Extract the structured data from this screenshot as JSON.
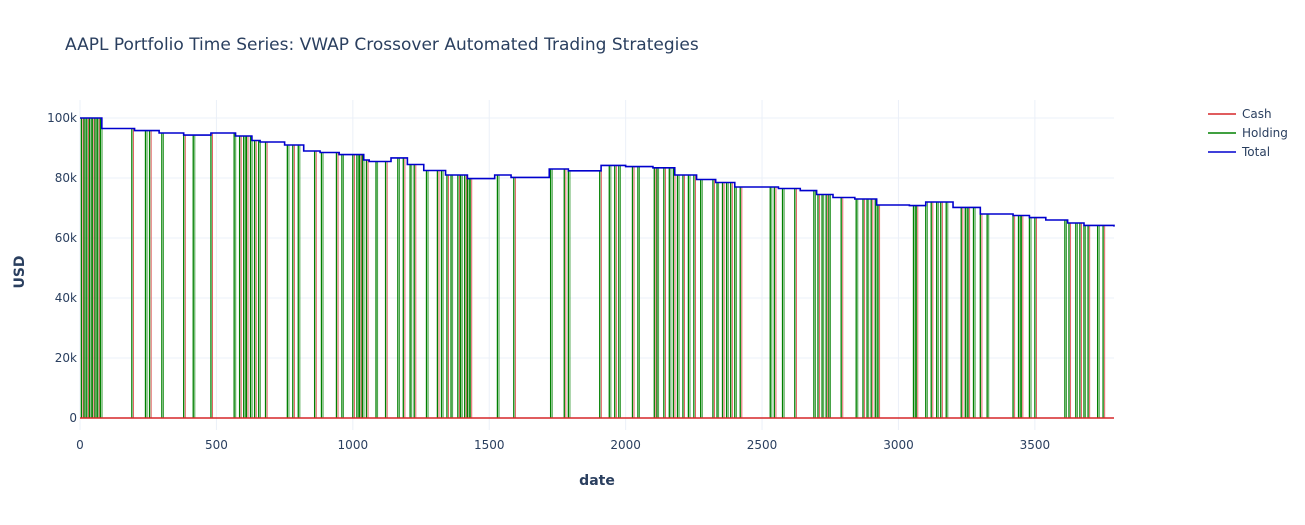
{
  "chart_data": {
    "type": "line",
    "title": "AAPL Portfolio Time Series: VWAP Crossover Automated Trading Strategies",
    "xlabel": "date",
    "ylabel": "USD",
    "xlim": [
      0,
      3790
    ],
    "ylim": [
      -4000,
      106000
    ],
    "x_ticks": [
      {
        "value": 0,
        "label": "0"
      },
      {
        "value": 500,
        "label": "500"
      },
      {
        "value": 1000,
        "label": "1000"
      },
      {
        "value": 1500,
        "label": "1500"
      },
      {
        "value": 2000,
        "label": "2000"
      },
      {
        "value": 2500,
        "label": "2500"
      },
      {
        "value": 3000,
        "label": "3000"
      },
      {
        "value": 3500,
        "label": "3500"
      }
    ],
    "y_ticks": [
      {
        "value": 0,
        "label": "0"
      },
      {
        "value": 20000,
        "label": "20k"
      },
      {
        "value": 40000,
        "label": "40k"
      },
      {
        "value": 60000,
        "label": "60k"
      },
      {
        "value": 80000,
        "label": "80k"
      },
      {
        "value": 100000,
        "label": "100k"
      }
    ],
    "grid": true,
    "legend_position": "right",
    "series": [
      {
        "name": "Cash",
        "color": "#d62728"
      },
      {
        "name": "Holding",
        "color": "#008000"
      },
      {
        "name": "Total",
        "color": "#0000cd"
      }
    ],
    "total": {
      "x": [
        0,
        80,
        200,
        290,
        380,
        480,
        570,
        630,
        660,
        750,
        820,
        880,
        950,
        1040,
        1060,
        1140,
        1200,
        1260,
        1340,
        1420,
        1520,
        1580,
        1720,
        1790,
        1910,
        2000,
        2100,
        2180,
        2260,
        2330,
        2400,
        2560,
        2640,
        2700,
        2760,
        2840,
        2920,
        3040,
        3100,
        3200,
        3300,
        3420,
        3480,
        3540,
        3620,
        3680,
        3790
      ],
      "y": [
        100000,
        96500,
        95800,
        95000,
        94300,
        95000,
        94000,
        92500,
        92000,
        91000,
        89000,
        88500,
        87800,
        86000,
        85500,
        86700,
        84500,
        82500,
        81000,
        79800,
        81000,
        80200,
        83000,
        82400,
        84200,
        83800,
        83400,
        81000,
        79500,
        78500,
        77000,
        76500,
        75800,
        74500,
        73500,
        73000,
        71000,
        70800,
        72000,
        70200,
        68000,
        67500,
        66800,
        66000,
        65000,
        64200,
        63800
      ]
    },
    "cash_baseline": 0,
    "trade_x": [
      5,
      15,
      25,
      35,
      45,
      55,
      65,
      75,
      190,
      240,
      255,
      300,
      380,
      415,
      480,
      565,
      585,
      600,
      610,
      625,
      640,
      655,
      680,
      760,
      780,
      800,
      860,
      885,
      940,
      960,
      1000,
      1015,
      1025,
      1035,
      1050,
      1085,
      1120,
      1165,
      1185,
      1210,
      1225,
      1270,
      1310,
      1325,
      1345,
      1360,
      1385,
      1395,
      1410,
      1420,
      1430,
      1530,
      1590,
      1725,
      1775,
      1790,
      1905,
      1940,
      1960,
      1975,
      2025,
      2045,
      2105,
      2115,
      2140,
      2160,
      2175,
      2190,
      2210,
      2230,
      2250,
      2275,
      2320,
      2335,
      2355,
      2370,
      2385,
      2400,
      2420,
      2530,
      2545,
      2575,
      2620,
      2690,
      2705,
      2720,
      2735,
      2745,
      2790,
      2845,
      2870,
      2885,
      2900,
      2915,
      2925,
      3055,
      3065,
      3100,
      3120,
      3140,
      3155,
      3175,
      3230,
      3245,
      3255,
      3275,
      3300,
      3325,
      3420,
      3440,
      3450,
      3480,
      3500,
      3610,
      3625,
      3650,
      3665,
      3680,
      3695,
      3730,
      3750
    ]
  }
}
